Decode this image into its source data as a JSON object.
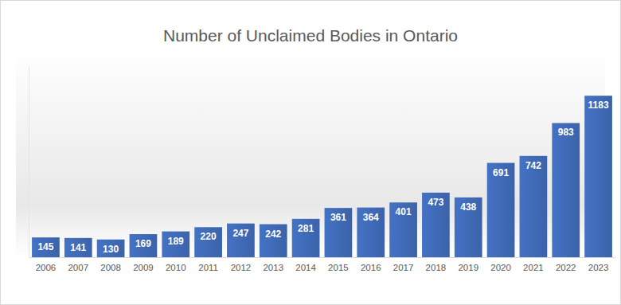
{
  "chart_data": {
    "type": "bar",
    "title": "Number of Unclaimed Bodies in Ontario",
    "categories": [
      "2006",
      "2007",
      "2008",
      "2009",
      "2010",
      "2011",
      "2012",
      "2013",
      "2014",
      "2015",
      "2016",
      "2017",
      "2018",
      "2019",
      "2020",
      "2021",
      "2022",
      "2023"
    ],
    "values": [
      145,
      141,
      130,
      169,
      189,
      220,
      247,
      242,
      281,
      361,
      364,
      401,
      473,
      438,
      691,
      742,
      983,
      1183
    ],
    "color": "#4472c4",
    "ylim": [
      0,
      1400
    ],
    "grid": false,
    "data_labels": true,
    "tick_labels": "x"
  }
}
